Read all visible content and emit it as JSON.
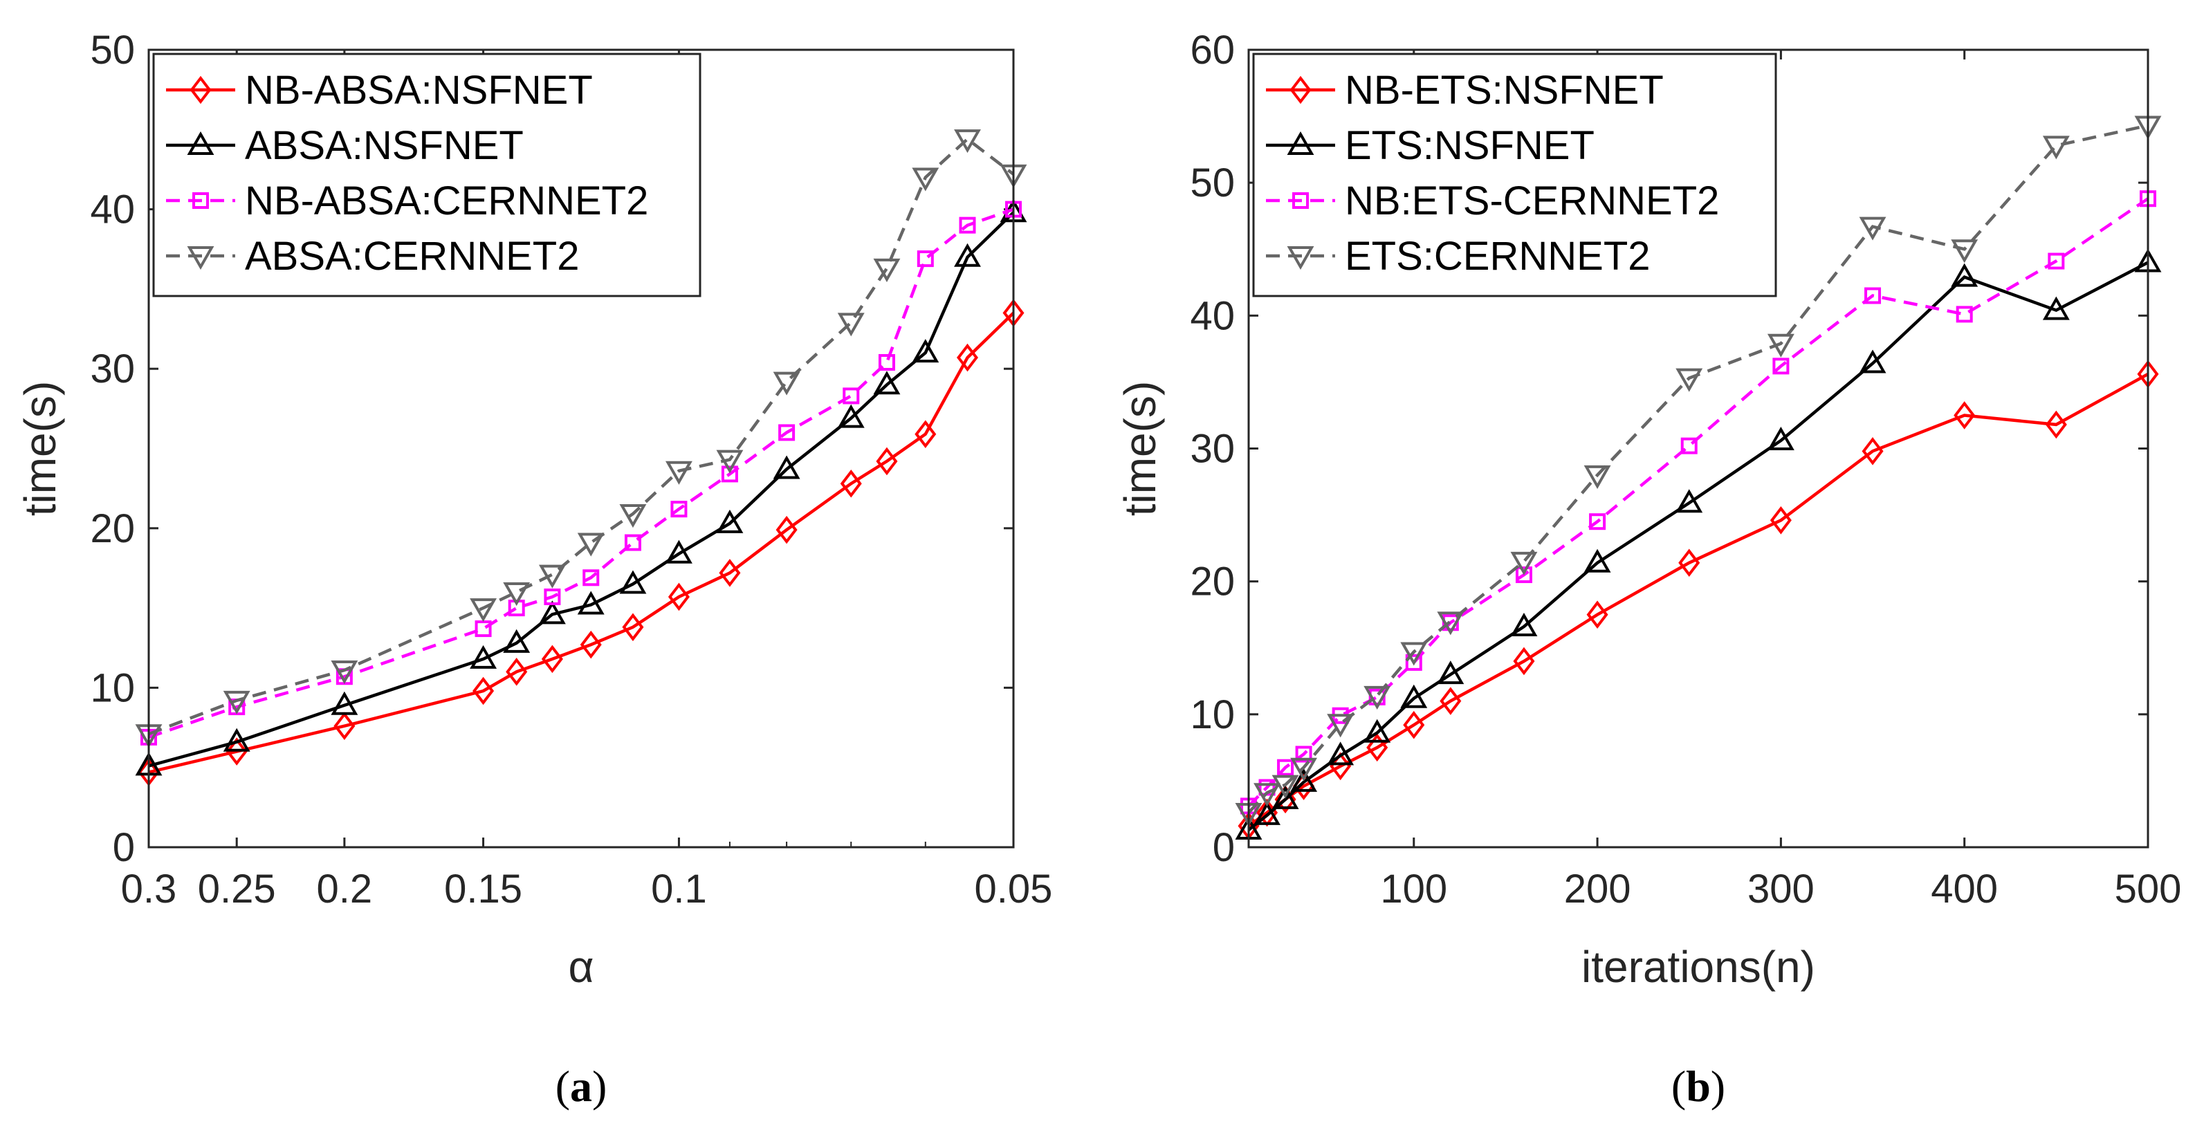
{
  "chart_data": [
    {
      "type": "line",
      "panel_caption": {
        "open": "(",
        "letter": "a",
        "close": ")"
      },
      "xlabel": "α",
      "ylabel": "time(s)",
      "xlim": [
        0.3,
        0.05
      ],
      "x_reversed": true,
      "x_scale": "log",
      "ylim": [
        0,
        50
      ],
      "xticks": [
        0.3,
        0.25,
        0.2,
        0.15,
        0.1,
        0.05
      ],
      "xtick_labels": [
        "0.3",
        "0.25",
        "0.2",
        "0.15",
        "0.1",
        "0.05"
      ],
      "yticks": [
        0,
        10,
        20,
        30,
        40,
        50
      ],
      "ytick_labels": [
        "0",
        "10",
        "20",
        "30",
        "40",
        "50"
      ],
      "legend_position": "top-left",
      "x": [
        0.3,
        0.25,
        0.2,
        0.15,
        0.14,
        0.13,
        0.12,
        0.11,
        0.1,
        0.09,
        0.08,
        0.07,
        0.065,
        0.06,
        0.055,
        0.05
      ],
      "series": [
        {
          "name": "NB-ABSA:NSFNET",
          "color": "#ff0000",
          "dash": "solid",
          "marker": "diamond",
          "values": [
            4.7,
            6.0,
            7.6,
            9.8,
            11.0,
            11.8,
            12.7,
            13.8,
            15.7,
            17.2,
            19.9,
            22.8,
            24.2,
            25.9,
            30.7,
            33.5
          ]
        },
        {
          "name": "ABSA:NSFNET",
          "color": "#000000",
          "dash": "solid",
          "marker": "triangle-up",
          "values": [
            5.1,
            6.6,
            8.9,
            11.8,
            12.8,
            14.6,
            15.2,
            16.5,
            18.4,
            20.3,
            23.7,
            26.9,
            29.0,
            31.0,
            37.0,
            39.8
          ]
        },
        {
          "name": "NB-ABSA:CERNNET2",
          "color": "#ff00ff",
          "dash": "dash",
          "marker": "square",
          "values": [
            6.9,
            8.8,
            10.7,
            13.7,
            15.0,
            15.7,
            16.9,
            19.1,
            21.2,
            23.4,
            26.0,
            28.3,
            30.4,
            36.9,
            39.0,
            40.0
          ]
        },
        {
          "name": "ABSA:CERNNET2",
          "color": "#666666",
          "dash": "dash",
          "marker": "triangle-down",
          "values": [
            7.1,
            9.2,
            11.1,
            15.0,
            16.0,
            17.1,
            19.1,
            20.9,
            23.6,
            24.3,
            29.2,
            32.9,
            36.3,
            42.0,
            44.4,
            42.2
          ]
        }
      ]
    },
    {
      "type": "line",
      "panel_caption": {
        "open": "(",
        "letter": "b",
        "close": ")"
      },
      "xlabel": "iterations(n)",
      "ylabel": "time(s)",
      "xlim": [
        10,
        500
      ],
      "ylim": [
        0,
        60
      ],
      "xticks": [
        100,
        200,
        300,
        400,
        500
      ],
      "xtick_labels": [
        "100",
        "200",
        "300",
        "400",
        "500"
      ],
      "yticks": [
        0,
        10,
        20,
        30,
        40,
        50,
        60
      ],
      "ytick_labels": [
        "0",
        "10",
        "20",
        "30",
        "40",
        "50",
        "60"
      ],
      "legend_position": "top-left",
      "x": [
        10,
        20,
        30,
        40,
        60,
        80,
        100,
        120,
        160,
        200,
        250,
        300,
        350,
        400,
        450,
        500
      ],
      "series": [
        {
          "name": "NB-ETS:NSFNET",
          "color": "#ff0000",
          "dash": "solid",
          "marker": "diamond",
          "values": [
            1.6,
            2.6,
            3.6,
            4.6,
            6.1,
            7.5,
            9.2,
            11.0,
            14.0,
            17.5,
            21.4,
            24.6,
            29.8,
            32.5,
            31.8,
            35.6
          ]
        },
        {
          "name": "ETS:NSFNET",
          "color": "#000000",
          "dash": "solid",
          "marker": "triangle-up",
          "values": [
            1.3,
            2.4,
            3.6,
            4.9,
            6.9,
            8.6,
            11.2,
            13.0,
            16.6,
            21.4,
            25.9,
            30.6,
            36.4,
            42.9,
            40.4,
            44.0
          ]
        },
        {
          "name": "NB:ETS-CERNNET2",
          "color": "#ff00ff",
          "dash": "dash",
          "marker": "square",
          "values": [
            3.1,
            4.5,
            6.0,
            7.0,
            9.9,
            11.3,
            13.9,
            16.9,
            20.5,
            24.5,
            30.2,
            36.2,
            41.5,
            40.1,
            44.1,
            48.8
          ]
        },
        {
          "name": "ETS:CERNNET2",
          "color": "#666666",
          "dash": "dash",
          "marker": "triangle-down",
          "values": [
            2.6,
            4.1,
            4.7,
            6.0,
            9.3,
            11.4,
            14.7,
            17.0,
            21.5,
            28.0,
            35.3,
            37.9,
            46.7,
            45.0,
            52.8,
            54.3
          ]
        }
      ]
    }
  ]
}
